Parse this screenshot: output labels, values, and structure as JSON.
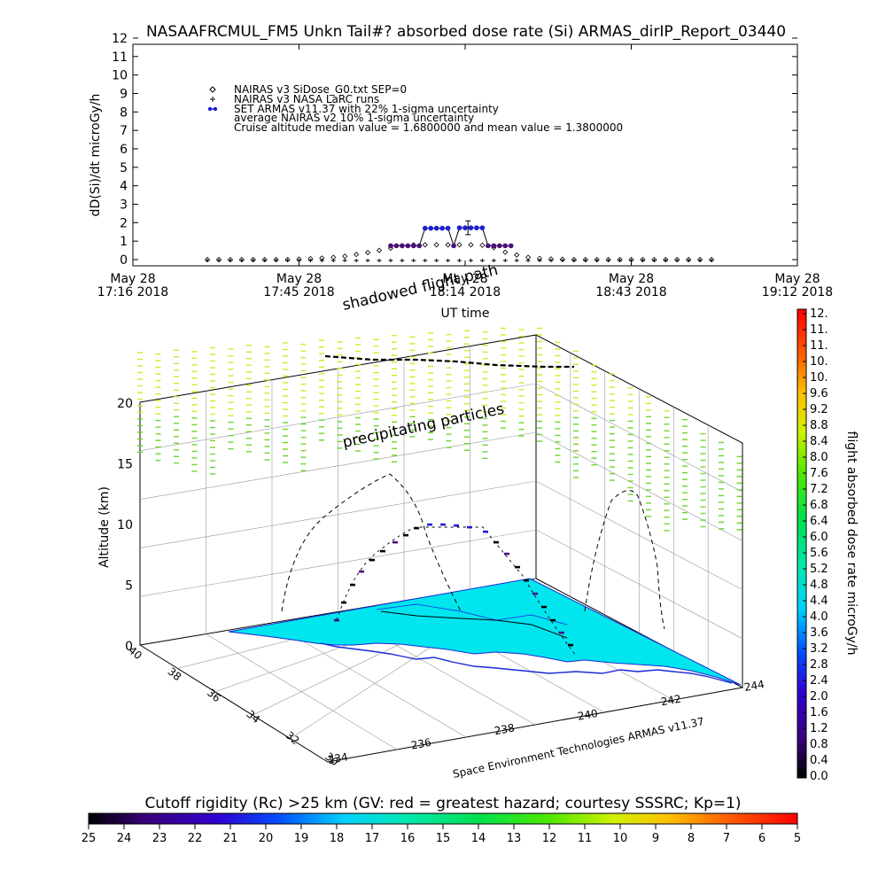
{
  "title": "NASAAFRCMUL_FM5 Unkn Tail#? absorbed dose rate (Si) ARMAS_dirIP_Report_03440",
  "chart_data": [
    {
      "type": "line",
      "ylabel": "dD(Si)/dt microGy/h",
      "xlabel": "UT time",
      "ylim": [
        0,
        12
      ],
      "yticks": [
        "0",
        "1",
        "2",
        "3",
        "4",
        "5",
        "6",
        "7",
        "8",
        "9",
        "10",
        "11",
        "12"
      ],
      "xticks": [
        {
          "date": "May 28",
          "time": "17:16 2018"
        },
        {
          "date": "May 28",
          "time": "17:45 2018"
        },
        {
          "date": "May 28",
          "time": "18:14 2018"
        },
        {
          "date": "May 28",
          "time": "18:43 2018"
        },
        {
          "date": "May 28",
          "time": "19:12 2018"
        }
      ],
      "xlim_minutes_after_1716": [
        0,
        116
      ],
      "legend": [
        "NAIRAS v3 SiDose_G0.txt SEP=0",
        "NAIRAS v3 NASA LaRC runs",
        "SET ARMAS v11.37 with 22% 1-sigma uncertainty",
        "average NAIRAS v2 10% 1-sigma uncertainty",
        "Cruise altitude median value = 1.6800000 and mean value = 1.3800000"
      ],
      "series": [
        {
          "name": "NAIRAS v3 SiDose_G0.txt SEP=0",
          "marker": "diamond",
          "x": [
            13,
            15,
            17,
            19,
            21,
            23,
            25,
            27,
            29,
            31,
            33,
            35,
            37,
            39,
            41,
            43,
            45,
            47,
            49,
            51,
            53,
            55,
            57,
            59,
            61,
            63,
            65,
            67,
            69,
            71,
            73,
            75,
            77,
            79,
            81,
            83,
            85,
            87,
            89,
            91,
            93,
            95,
            97,
            99,
            101
          ],
          "values": [
            0.0,
            0.0,
            0.0,
            0.0,
            0.0,
            0.0,
            0.0,
            0.0,
            0.02,
            0.05,
            0.08,
            0.12,
            0.18,
            0.28,
            0.38,
            0.5,
            0.62,
            0.75,
            0.8,
            0.8,
            0.8,
            0.8,
            0.8,
            0.8,
            0.78,
            0.65,
            0.4,
            0.25,
            0.12,
            0.06,
            0.03,
            0.02,
            0.0,
            0.0,
            0.0,
            0.0,
            0.0,
            0.0,
            0.0,
            0.0,
            0.0,
            0.0,
            0.0,
            0.0,
            0.0
          ]
        },
        {
          "name": "NAIRAS v3 NASA LaRC runs",
          "marker": "plus",
          "x": [
            13,
            15,
            17,
            19,
            21,
            23,
            25,
            27,
            29,
            31,
            33,
            35,
            37,
            39,
            41,
            43,
            45,
            47,
            49,
            51,
            53,
            55,
            57,
            59,
            61,
            63,
            65,
            67,
            69,
            71,
            73,
            75,
            77,
            79,
            81,
            83,
            85,
            87,
            89,
            91,
            93,
            95,
            97,
            99,
            101
          ],
          "values": [
            -0.05,
            -0.05,
            -0.05,
            -0.05,
            -0.05,
            -0.05,
            -0.05,
            -0.05,
            -0.05,
            -0.05,
            -0.05,
            -0.05,
            -0.05,
            -0.05,
            -0.05,
            -0.05,
            -0.05,
            -0.05,
            -0.05,
            -0.05,
            -0.05,
            -0.05,
            -0.05,
            -0.05,
            -0.05,
            -0.05,
            -0.05,
            -0.05,
            -0.05,
            -0.05,
            -0.05,
            -0.05,
            -0.05,
            -0.05,
            -0.05,
            -0.05,
            -0.05,
            -0.05,
            -0.05,
            -0.05,
            -0.05,
            -0.05,
            -0.05,
            -0.05,
            -0.05
          ]
        },
        {
          "name": "SET ARMAS v11.37 with 22% 1-sigma uncertainty",
          "marker": "filled-circle",
          "color": "#1f1fd2",
          "x": [
            45,
            46,
            47,
            48,
            49,
            50,
            51,
            52,
            53,
            54,
            55,
            56,
            57,
            58,
            59,
            60,
            61,
            62,
            63,
            64,
            65,
            66
          ],
          "values": [
            0.75,
            0.75,
            0.75,
            0.75,
            0.75,
            0.75,
            1.7,
            1.7,
            1.7,
            1.7,
            1.7,
            0.75,
            1.72,
            1.72,
            1.72,
            1.72,
            1.72,
            0.75,
            0.75,
            0.75,
            0.75,
            0.75
          ]
        }
      ]
    },
    {
      "type": "scatter",
      "ylabel": "Altitude (km)",
      "zticks": [
        "0",
        "5",
        "10",
        "15",
        "20"
      ],
      "latitude_ticks": [
        "30",
        "32",
        "34",
        "36",
        "38",
        "40"
      ],
      "longitude_ticks": [
        "234",
        "236",
        "238",
        "240",
        "242",
        "244"
      ],
      "credit": "Space Environment Technologies ARMAS v11.37",
      "annotations": [
        "shadowed flight path",
        "precipitating particles"
      ]
    }
  ],
  "colorbar_right": {
    "label": "flight absorbed dose rate microGy/h",
    "ticks": [
      "0.0",
      "0.4",
      "0.8",
      "1.2",
      "1.6",
      "2.0",
      "2.4",
      "2.8",
      "3.2",
      "3.6",
      "4.0",
      "4.4",
      "4.8",
      "5.2",
      "5.6",
      "6.0",
      "6.4",
      "6.8",
      "7.2",
      "7.6",
      "8.0",
      "8.4",
      "8.8",
      "9.2",
      "9.6",
      "10.",
      "10.",
      "11.",
      "11.",
      "12."
    ]
  },
  "colorbar_bottom": {
    "label": "Cutoff rigidity (Rc) >25 km (GV: red = greatest hazard; courtesy SSSRC; Kp=1)",
    "ticks": [
      "25",
      "24",
      "23",
      "22",
      "21",
      "20",
      "19",
      "18",
      "17",
      "16",
      "15",
      "14",
      "13",
      "12",
      "11",
      "10",
      "9",
      "8",
      "7",
      "6",
      "5"
    ]
  },
  "colors": {
    "sea": "#00e5ee",
    "armas": "#1f1fd2",
    "precipitation": "#8ad32a"
  }
}
